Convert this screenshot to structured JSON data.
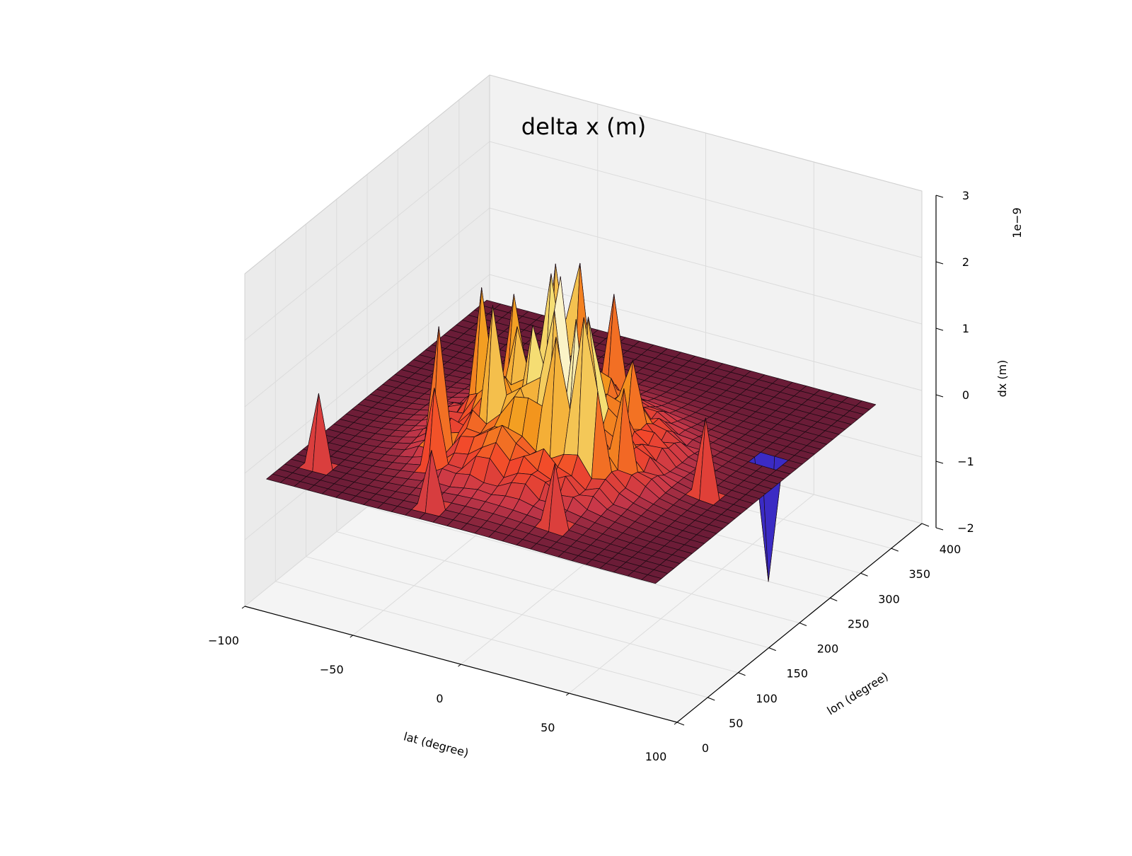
{
  "chart_data": {
    "type": "surface3d",
    "title": "delta x (m)",
    "xlabel": "lat (degree)",
    "ylabel": "lon (degree)",
    "zlabel": "dx (m)",
    "z_scale_label": "1e−9",
    "xlim": [
      -100,
      100
    ],
    "ylim": [
      0,
      400
    ],
    "zlim": [
      -2,
      3
    ],
    "x_ticks": [
      "−100",
      "−50",
      "0",
      "50",
      "100"
    ],
    "y_ticks": [
      "0",
      "50",
      "100",
      "150",
      "200",
      "250",
      "300",
      "350",
      "400"
    ],
    "z_ticks": [
      "−2",
      "−1",
      "0",
      "1",
      "2",
      "3"
    ],
    "grid": true,
    "colormap": "inferno-like (purple → red → orange → yellow → white)",
    "colors": {
      "base": "#4a1230",
      "low": "#3b2bc4",
      "mid_red": "#f2472b",
      "orange": "#f39a1c",
      "yellow": "#f5e37a",
      "peak": "#ffffff",
      "pane": "#f2f2f2",
      "grid": "#dcdcdc"
    },
    "surface_summary": {
      "x_range": [
        -90,
        90
      ],
      "y_range": [
        0,
        360
      ],
      "z_baseline": 0,
      "z_max": 2.0,
      "z_min": -1.8
    }
  }
}
